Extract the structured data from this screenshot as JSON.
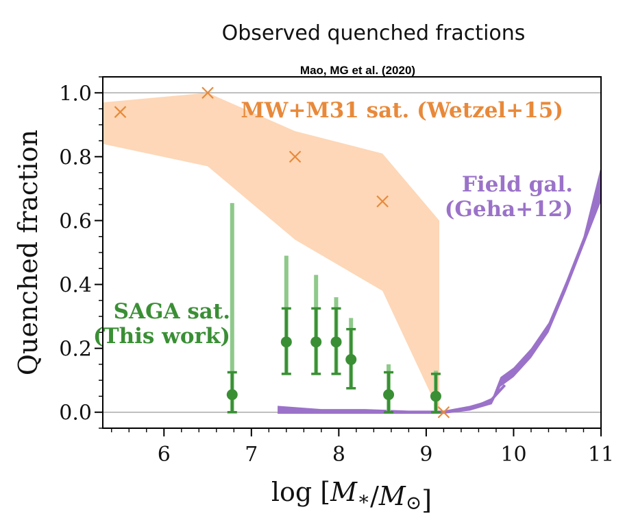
{
  "chart_data": {
    "type": "scatter",
    "title": "Observed quenched fractions",
    "subtitle": "Mao, MG et al. (2020)",
    "xlabel": "log [M∗/M⊙]",
    "ylabel": "Quenched fraction",
    "xlim": [
      5.3,
      11.0
    ],
    "ylim": [
      -0.05,
      1.05
    ],
    "xticks": [
      6,
      7,
      8,
      9,
      10,
      11
    ],
    "yticks": [
      0.0,
      0.2,
      0.4,
      0.6,
      0.8,
      1.0
    ],
    "ytick_labels": [
      "0.0",
      "0.2",
      "0.4",
      "0.6",
      "0.8",
      "1.0"
    ],
    "reference_lines": [
      0.0,
      1.0
    ],
    "series": [
      {
        "name": "MW+M31 sat. (Wetzel+15)",
        "kind": "x-markers with band",
        "color": "#e8893a",
        "band_color": "#fdd7b7",
        "label_lines": [
          "MW+M31 sat. (Wetzel+15)"
        ],
        "points": [
          {
            "x": 5.5,
            "y": 0.94
          },
          {
            "x": 6.5,
            "y": 1.0
          },
          {
            "x": 7.5,
            "y": 0.8
          },
          {
            "x": 8.5,
            "y": 0.66
          },
          {
            "x": 9.2,
            "y": 0.0
          }
        ],
        "band": {
          "x": [
            5.3,
            6.5,
            7.5,
            8.5,
            9.15
          ],
          "upper": [
            0.97,
            1.0,
            0.88,
            0.81,
            0.6
          ],
          "lower": [
            0.84,
            0.77,
            0.54,
            0.38,
            0.0
          ]
        }
      },
      {
        "name": "SAGA sat. (This work)",
        "kind": "points with error bars",
        "color": "#3a8f35",
        "light_color": "#8ec98a",
        "label_lines": [
          "SAGA sat.",
          "(This work)"
        ],
        "points": [
          {
            "x": 6.78,
            "y": 0.055,
            "err_low": 0.0,
            "err_high": 0.125,
            "outer_high": 0.655
          },
          {
            "x": 7.4,
            "y": 0.22,
            "err_low": 0.12,
            "err_high": 0.325,
            "outer_high": 0.49
          },
          {
            "x": 7.74,
            "y": 0.22,
            "err_low": 0.12,
            "err_high": 0.325,
            "outer_high": 0.43
          },
          {
            "x": 7.97,
            "y": 0.22,
            "err_low": 0.12,
            "err_high": 0.325,
            "outer_high": 0.36
          },
          {
            "x": 8.14,
            "y": 0.165,
            "err_low": 0.075,
            "err_high": 0.26,
            "outer_high": 0.295
          },
          {
            "x": 8.57,
            "y": 0.055,
            "err_low": 0.0,
            "err_high": 0.125,
            "outer_high": 0.15
          },
          {
            "x": 9.11,
            "y": 0.05,
            "err_low": 0.0,
            "err_high": 0.12,
            "outer_high": 0.13
          }
        ]
      },
      {
        "name": "Field gal. (Geha+12)",
        "kind": "band",
        "color": "#9b72c9",
        "label_lines": [
          "Field gal.",
          "(Geha+12)"
        ],
        "band": {
          "x": [
            7.3,
            7.8,
            8.3,
            8.8,
            9.2,
            9.5,
            9.75,
            9.85,
            10.0,
            10.2,
            10.4,
            10.6,
            10.8,
            11.0
          ],
          "upper": [
            0.02,
            0.01,
            0.01,
            0.005,
            0.005,
            0.02,
            0.04,
            0.11,
            0.14,
            0.2,
            0.28,
            0.41,
            0.55,
            0.77
          ],
          "lower": [
            -0.005,
            -0.005,
            -0.005,
            -0.005,
            -0.005,
            0.005,
            0.025,
            0.08,
            0.11,
            0.17,
            0.25,
            0.38,
            0.52,
            0.66
          ]
        },
        "branch": {
          "x": [
            9.2,
            9.5,
            9.75,
            9.9
          ],
          "y": [
            0.0,
            0.01,
            0.04,
            0.085
          ]
        }
      }
    ]
  }
}
